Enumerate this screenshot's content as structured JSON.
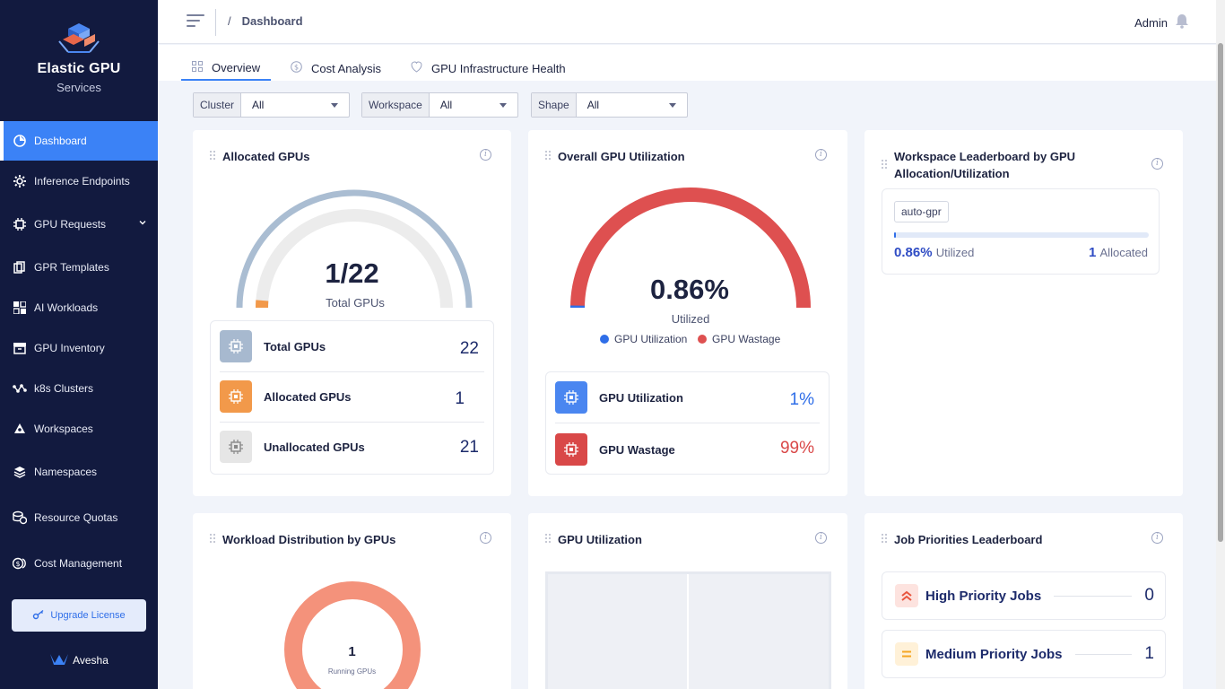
{
  "brand": {
    "title": "Elastic GPU",
    "subtitle": "Services"
  },
  "sidebar": {
    "items": [
      {
        "label": "Dashboard",
        "icon": "pie-chart-icon",
        "active": true
      },
      {
        "label": "Inference Endpoints",
        "icon": "gear-icon"
      },
      {
        "label": "GPU Requests",
        "icon": "chip-icon"
      },
      {
        "label": "GPR Templates",
        "icon": "copy-icon"
      },
      {
        "label": "AI Workloads",
        "icon": "grid-icon"
      },
      {
        "label": "GPU Inventory",
        "icon": "archive-icon"
      },
      {
        "label": "k8s Clusters",
        "icon": "nodes-icon"
      },
      {
        "label": "Workspaces",
        "icon": "workspace-icon"
      },
      {
        "label": "Namespaces",
        "icon": "layers-icon"
      },
      {
        "label": "Resource Quotas",
        "icon": "coins-icon"
      },
      {
        "label": "Cost Management",
        "icon": "money-icon"
      }
    ],
    "upgrade_label": "Upgrade License",
    "footer_brand": "Avesha"
  },
  "header": {
    "breadcrumb_sep": "/",
    "breadcrumb": "Dashboard",
    "user": "Admin"
  },
  "tabs": [
    {
      "label": "Overview",
      "active": true
    },
    {
      "label": "Cost Analysis"
    },
    {
      "label": "GPU Infrastructure Health"
    }
  ],
  "filters": [
    {
      "label": "Cluster",
      "value": "All"
    },
    {
      "label": "Workspace",
      "value": "All"
    },
    {
      "label": "Shape",
      "value": "All"
    }
  ],
  "allocated": {
    "title": "Allocated GPUs",
    "gauge_value": "1/22",
    "gauge_caption": "Total GPUs",
    "allocated": 1,
    "total": 22,
    "rows": [
      {
        "name": "Total GPUs",
        "value": "22",
        "color": "#a7b9cf"
      },
      {
        "name": "Allocated GPUs",
        "value": "1",
        "color": "#f2994a"
      },
      {
        "name": "Unallocated GPUs",
        "value": "21",
        "color": "#e4e4e4"
      }
    ]
  },
  "utilization": {
    "title": "Overall GPU Utilization",
    "gauge_value": "0.86%",
    "gauge_caption": "Utilized",
    "utilized_fraction": 0.0086,
    "legend": [
      {
        "label": "GPU Utilization",
        "color": "#2f6ee8"
      },
      {
        "label": "GPU Wastage",
        "color": "#de5050"
      }
    ],
    "rows": [
      {
        "name": "GPU Utilization",
        "value": "1%",
        "color": "#4a86f0",
        "value_color": "#2f6ee8"
      },
      {
        "name": "GPU Wastage",
        "value": "99%",
        "color": "#d94848",
        "value_color": "#d94848"
      }
    ]
  },
  "leaderboard": {
    "title": "Workspace Leaderboard by GPU Allocation/Utilization",
    "entry": {
      "tag": "auto-gpr",
      "percent": "0.86%",
      "utilized_label": "Utilized",
      "allocated_value": "1",
      "allocated_label": "Allocated",
      "fraction": 0.0086
    }
  },
  "workload": {
    "title": "Workload Distribution by GPUs",
    "center_value": "1",
    "center_caption": "Running GPUs"
  },
  "gpu_util": {
    "title": "GPU Utilization"
  },
  "priorities": {
    "title": "Job Priorities Leaderboard",
    "rows": [
      {
        "name": "High Priority Jobs",
        "value": "0"
      },
      {
        "name": "Medium Priority Jobs",
        "value": "1"
      }
    ]
  }
}
